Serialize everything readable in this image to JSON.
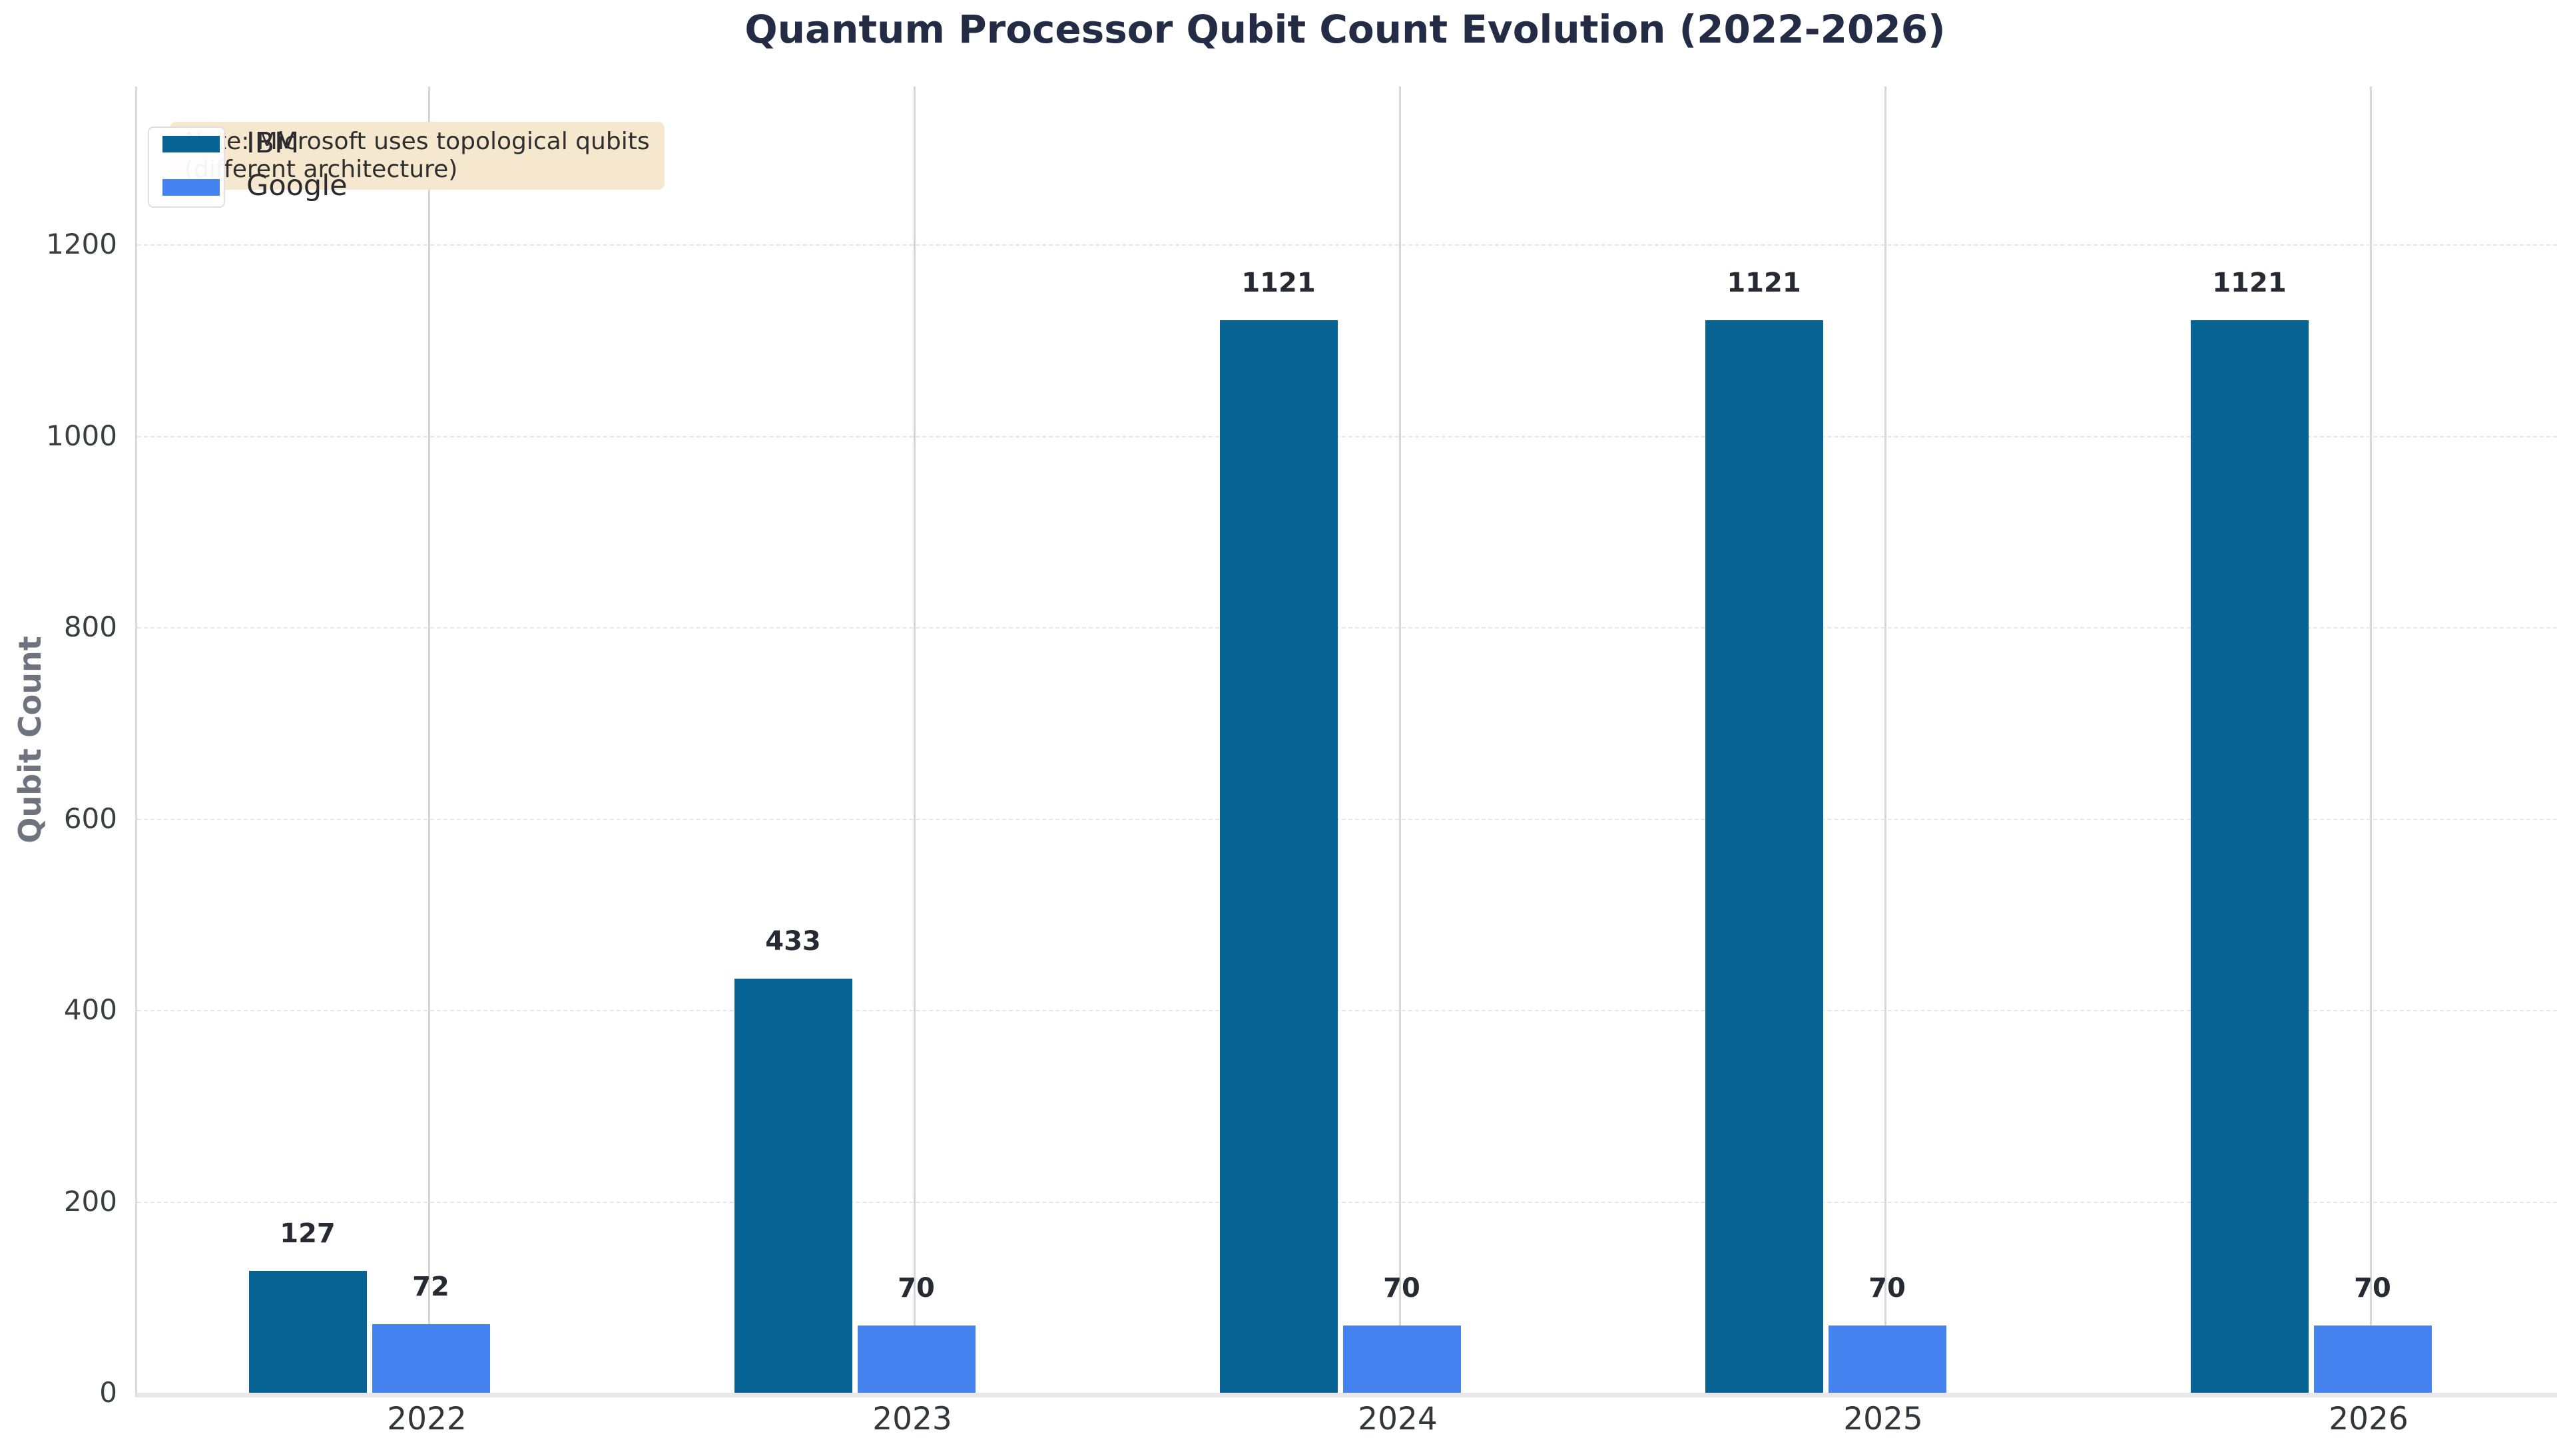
{
  "title": "Quantum Processor Qubit Count Evolution (2022-2026)",
  "chart_data": {
    "type": "bar",
    "title": "Quantum Processor Qubit Count Evolution (2022-2026)",
    "categories": [
      "2022",
      "2023",
      "2024",
      "2025",
      "2026"
    ],
    "series": [
      {
        "name": "IBM",
        "color": "#066394",
        "values": [
          127,
          433,
          1121,
          1121,
          1121
        ]
      },
      {
        "name": "Google",
        "color": "#4584f0",
        "values": [
          72,
          70,
          70,
          70,
          70
        ]
      }
    ],
    "xlabel": "",
    "ylabel": "Qubit Count",
    "ylim": [
      0,
      1365
    ],
    "yticks": [
      0,
      200,
      400,
      600,
      800,
      1000,
      1200
    ],
    "grid": {
      "horizontal": "dashed",
      "vertical": "solid"
    },
    "legend_position": "upper left",
    "value_labels_shown": true
  },
  "annotation": {
    "line1": "Note: Microsoft uses topological qubits",
    "line2": "(different architecture)",
    "background": "#f5e8cf",
    "text_color": "#2f2f2f"
  },
  "legend": {
    "items": [
      {
        "label": "IBM",
        "color": "#066394"
      },
      {
        "label": "Google",
        "color": "#4584f0"
      }
    ]
  },
  "styles": {
    "title_color": "#232b45",
    "axis_label_color": "#6f737d",
    "tick_color": "#3a3d42",
    "value_label_color": "#262b33",
    "vertical_grid_color": "#d6d6db",
    "dashed_grid_color": "#e5e5ea",
    "left_spine_color": "#d9d9de",
    "bottom_spine_color": "#e8e8ec"
  }
}
